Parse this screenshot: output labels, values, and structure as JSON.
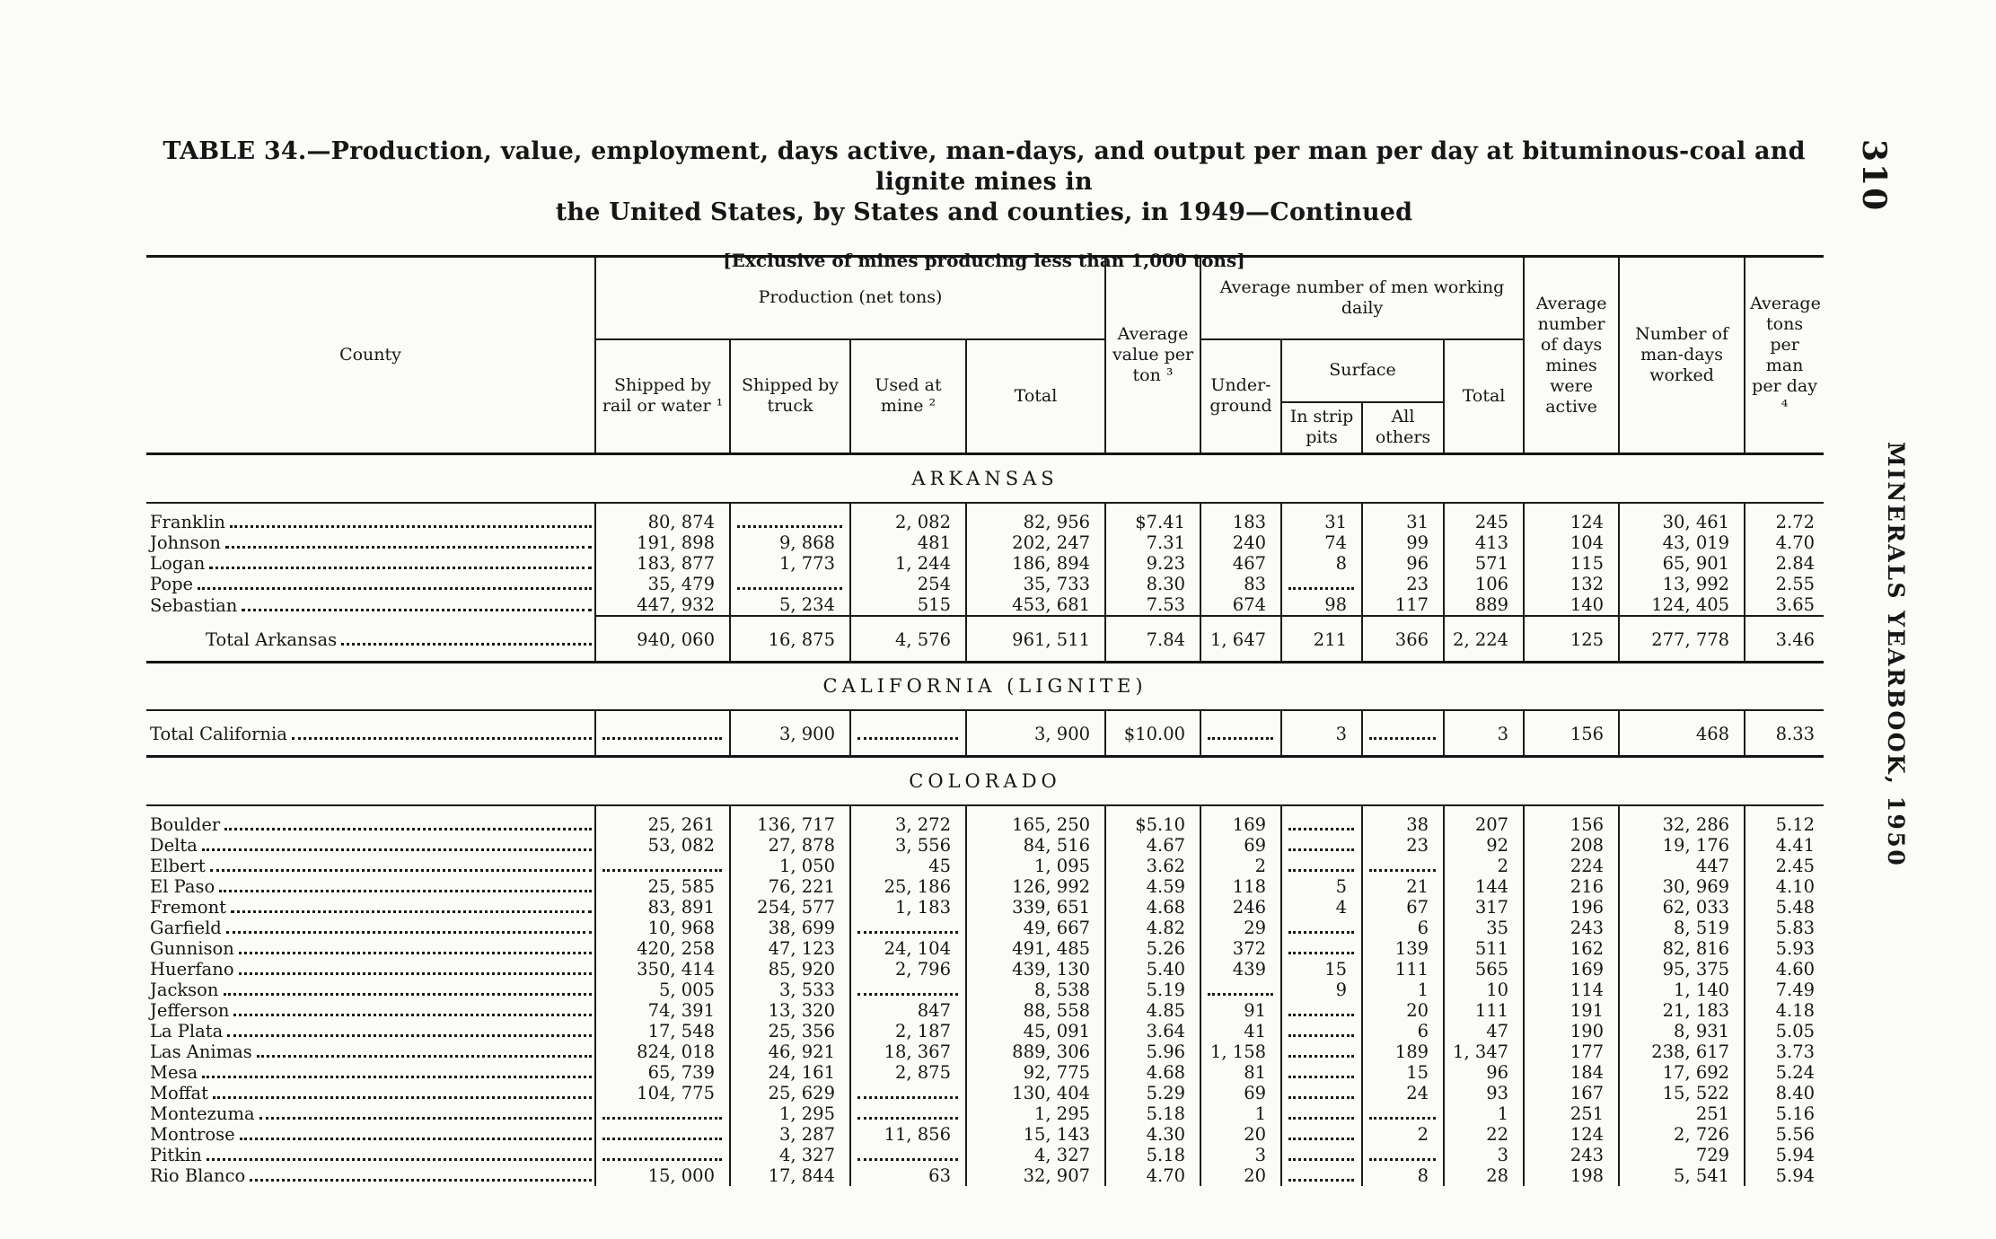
{
  "page": {
    "page_number": "310",
    "margin_text": "MINERALS YEARBOOK, 1950",
    "title_line1": "TABLE 34.—Production, value, employment, days active, man-days, and output per man per day at bituminous-coal and lignite mines in",
    "title_line2": "the United States, by States and counties, in 1949—Continued",
    "subtitle": "[Exclusive of mines producing less than 1,000 tons]"
  },
  "table": {
    "header": {
      "county": "County",
      "production_group": "Production (net tons)",
      "rail": "Shipped by rail or water ¹",
      "truck": "Shipped by truck",
      "mine": "Used at mine ²",
      "total_production": "Total",
      "value_per_ton": "Average value per ton ³",
      "men_group": "Average number of men working daily",
      "underground": "Under-ground",
      "surface_group": "Surface",
      "strip_pits": "In strip pits",
      "all_others": "All others",
      "total_men": "Total",
      "days_active": "Average number of days mines were active",
      "man_days": "Number of man-days worked",
      "tons_per_man": "Average tons per man per day ⁴"
    },
    "sections": [
      {
        "heading": "ARKANSAS",
        "rows": [
          {
            "county": "Franklin",
            "cells": [
              "80, 874",
              "",
              "2, 082",
              "82, 956",
              "$7.41",
              "183",
              "31",
              "31",
              "245",
              "124",
              "30, 461",
              "2.72"
            ]
          },
          {
            "county": "Johnson",
            "cells": [
              "191, 898",
              "9, 868",
              "481",
              "202, 247",
              "7.31",
              "240",
              "74",
              "99",
              "413",
              "104",
              "43, 019",
              "4.70"
            ]
          },
          {
            "county": "Logan",
            "cells": [
              "183, 877",
              "1, 773",
              "1, 244",
              "186, 894",
              "9.23",
              "467",
              "8",
              "96",
              "571",
              "115",
              "65, 901",
              "2.84"
            ]
          },
          {
            "county": "Pope",
            "cells": [
              "35, 479",
              "",
              "254",
              "35, 733",
              "8.30",
              "83",
              "",
              "23",
              "106",
              "132",
              "13, 992",
              "2.55"
            ]
          },
          {
            "county": "Sebastian",
            "cells": [
              "447, 932",
              "5, 234",
              "515",
              "453, 681",
              "7.53",
              "674",
              "98",
              "117",
              "889",
              "140",
              "124, 405",
              "3.65"
            ]
          },
          {
            "county": "Total Arkansas",
            "is_total": true,
            "indent": true,
            "cells": [
              "940, 060",
              "16, 875",
              "4, 576",
              "961, 511",
              "7.84",
              "1, 647",
              "211",
              "366",
              "2, 224",
              "125",
              "277, 778",
              "3.46"
            ]
          }
        ]
      },
      {
        "heading": "CALIFORNIA (LIGNITE)",
        "rows": [
          {
            "county": "Total California",
            "is_total": true,
            "no_rule": true,
            "cells": [
              "",
              "3, 900",
              "",
              "3, 900",
              "$10.00",
              "",
              "3",
              "",
              "3",
              "156",
              "468",
              "8.33"
            ]
          }
        ]
      },
      {
        "heading": "COLORADO",
        "rows": [
          {
            "county": "Boulder",
            "cells": [
              "25, 261",
              "136, 717",
              "3, 272",
              "165, 250",
              "$5.10",
              "169",
              "",
              "38",
              "207",
              "156",
              "32, 286",
              "5.12"
            ]
          },
          {
            "county": "Delta",
            "cells": [
              "53, 082",
              "27, 878",
              "3, 556",
              "84, 516",
              "4.67",
              "69",
              "",
              "23",
              "92",
              "208",
              "19, 176",
              "4.41"
            ]
          },
          {
            "county": "Elbert",
            "cells": [
              "",
              "1, 050",
              "45",
              "1, 095",
              "3.62",
              "2",
              "",
              "",
              "2",
              "224",
              "447",
              "2.45"
            ]
          },
          {
            "county": "El Paso",
            "cells": [
              "25, 585",
              "76, 221",
              "25, 186",
              "126, 992",
              "4.59",
              "118",
              "5",
              "21",
              "144",
              "216",
              "30, 969",
              "4.10"
            ]
          },
          {
            "county": "Fremont",
            "cells": [
              "83, 891",
              "254, 577",
              "1, 183",
              "339, 651",
              "4.68",
              "246",
              "4",
              "67",
              "317",
              "196",
              "62, 033",
              "5.48"
            ]
          },
          {
            "county": "Garfield",
            "cells": [
              "10, 968",
              "38, 699",
              "",
              "49, 667",
              "4.82",
              "29",
              "",
              "6",
              "35",
              "243",
              "8, 519",
              "5.83"
            ]
          },
          {
            "county": "Gunnison",
            "cells": [
              "420, 258",
              "47, 123",
              "24, 104",
              "491, 485",
              "5.26",
              "372",
              "",
              "139",
              "511",
              "162",
              "82, 816",
              "5.93"
            ]
          },
          {
            "county": "Huerfano",
            "cells": [
              "350, 414",
              "85, 920",
              "2, 796",
              "439, 130",
              "5.40",
              "439",
              "15",
              "111",
              "565",
              "169",
              "95, 375",
              "4.60"
            ]
          },
          {
            "county": "Jackson",
            "cells": [
              "5, 005",
              "3, 533",
              "",
              "8, 538",
              "5.19",
              "",
              "9",
              "1",
              "10",
              "114",
              "1, 140",
              "7.49"
            ]
          },
          {
            "county": "Jefferson",
            "cells": [
              "74, 391",
              "13, 320",
              "847",
              "88, 558",
              "4.85",
              "91",
              "",
              "20",
              "111",
              "191",
              "21, 183",
              "4.18"
            ]
          },
          {
            "county": "La Plata",
            "cells": [
              "17, 548",
              "25, 356",
              "2, 187",
              "45, 091",
              "3.64",
              "41",
              "",
              "6",
              "47",
              "190",
              "8, 931",
              "5.05"
            ]
          },
          {
            "county": "Las Animas",
            "cells": [
              "824, 018",
              "46, 921",
              "18, 367",
              "889, 306",
              "5.96",
              "1, 158",
              "",
              "189",
              "1, 347",
              "177",
              "238, 617",
              "3.73"
            ]
          },
          {
            "county": "Mesa",
            "cells": [
              "65, 739",
              "24, 161",
              "2, 875",
              "92, 775",
              "4.68",
              "81",
              "",
              "15",
              "96",
              "184",
              "17, 692",
              "5.24"
            ]
          },
          {
            "county": "Moffat",
            "cells": [
              "104, 775",
              "25, 629",
              "",
              "130, 404",
              "5.29",
              "69",
              "",
              "24",
              "93",
              "167",
              "15, 522",
              "8.40"
            ]
          },
          {
            "county": "Montezuma",
            "cells": [
              "",
              "1, 295",
              "",
              "1, 295",
              "5.18",
              "1",
              "",
              "",
              "1",
              "251",
              "251",
              "5.16"
            ]
          },
          {
            "county": "Montrose",
            "cells": [
              "",
              "3, 287",
              "11, 856",
              "15, 143",
              "4.30",
              "20",
              "",
              "2",
              "22",
              "124",
              "2, 726",
              "5.56"
            ]
          },
          {
            "county": "Pitkin",
            "cells": [
              "",
              "4, 327",
              "",
              "4, 327",
              "5.18",
              "3",
              "",
              "",
              "3",
              "243",
              "729",
              "5.94"
            ]
          },
          {
            "county": "Rio Blanco",
            "cells": [
              "15, 000",
              "17, 844",
              "63",
              "32, 907",
              "4.70",
              "20",
              "",
              "8",
              "28",
              "198",
              "5, 541",
              "5.94"
            ]
          }
        ]
      }
    ]
  }
}
